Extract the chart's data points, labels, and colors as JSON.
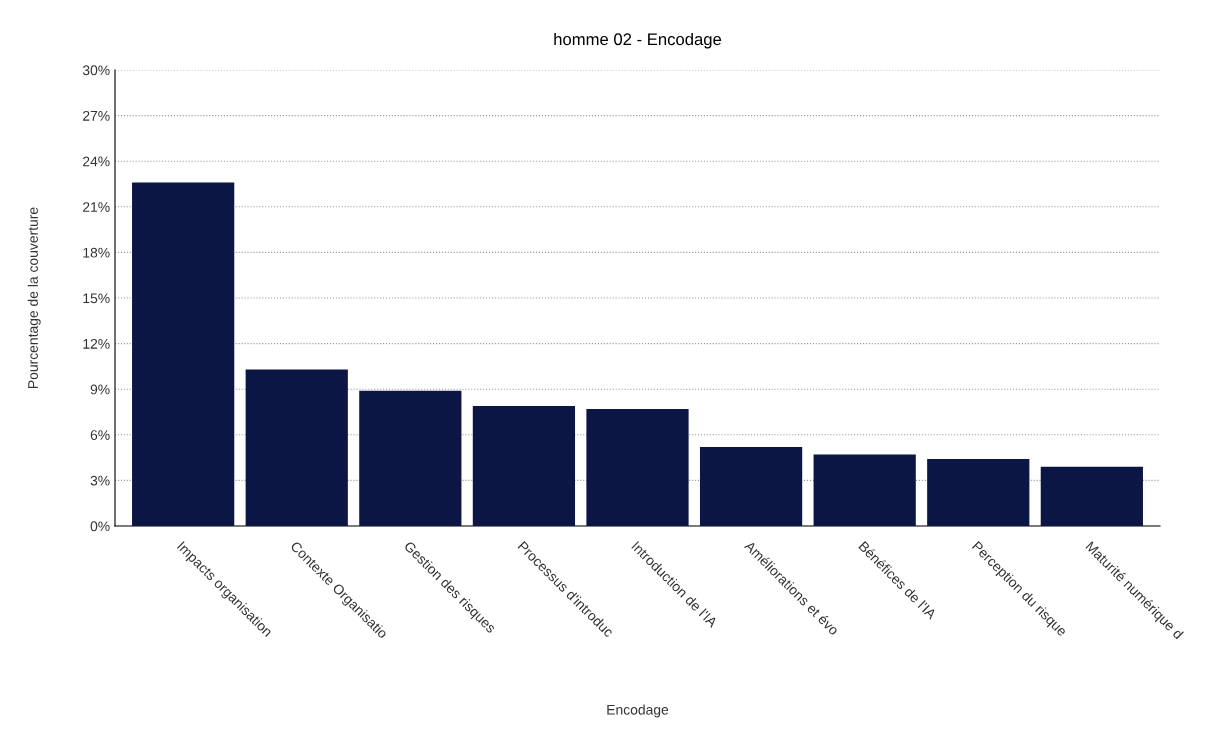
{
  "chart_data": {
    "type": "bar",
    "title": "homme 02 - Encodage",
    "xlabel": "Encodage",
    "ylabel": "Pourcentage de la couverture",
    "categories": [
      "Impacts organisation",
      "Contexte Organisatio",
      "Gestion des risques",
      "Processus d'introduc",
      "Introduction de l'IA",
      "Améliorations et évo",
      "Bénéfices de l'IA",
      "Perception du risque",
      "Maturité numérique d"
    ],
    "values": [
      22.6,
      10.3,
      8.9,
      7.9,
      7.7,
      5.2,
      4.7,
      4.4,
      3.9
    ],
    "color": "#0c1645",
    "ylim": [
      0,
      30
    ],
    "yticks": [
      {
        "value": 0,
        "label": "0%"
      },
      {
        "value": 3,
        "label": "3%"
      },
      {
        "value": 6,
        "label": "6%"
      },
      {
        "value": 9,
        "label": "9%"
      },
      {
        "value": 12,
        "label": "12%"
      },
      {
        "value": 15,
        "label": "15%"
      },
      {
        "value": 18,
        "label": "18%"
      },
      {
        "value": 21,
        "label": "21%"
      },
      {
        "value": 24,
        "label": "24%"
      },
      {
        "value": 27,
        "label": "27%"
      },
      {
        "value": 30,
        "label": "30%"
      }
    ],
    "grid": "y",
    "legend": false
  }
}
